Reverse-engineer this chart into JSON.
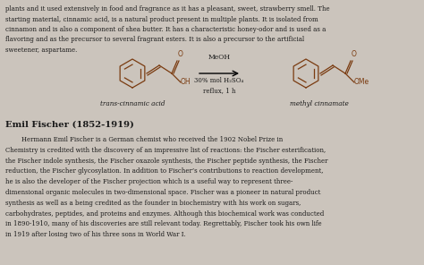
{
  "bg_color": "#cbc4bc",
  "top_text_lines": [
    "plants and it used extensively in food and fragrance as it has a pleasant, sweet, strawberry smell. The",
    "starting material, cinnamic acid, is a natural product present in multiple plants. It is isolated from",
    "cinnamon and is also a component of shea butter. It has a characteristic honey-odor and is used as a",
    "flavoring and as the precursor to several fragrant esters. It is also a precursor to the artificial",
    "sweetener, aspartame."
  ],
  "reaction_label_top": "MeOH",
  "reaction_label_mid": "30% mol H₂SO₄",
  "reaction_label_bot": "reflux, 1 h",
  "left_mol_label": "trans-cinnamic acid",
  "right_mol_label": "methyl cinnamate",
  "section_title": "Emil Fischer (1852-1919)",
  "body_text_lines": [
    "        Hermann Emil Fischer is a German chemist who received the 1902 Nobel Prize in",
    "Chemistry is credited with the discovery of an impressive list of reactions: the Fischer esterification,",
    "the Fischer indole synthesis, the Fischer oxazole synthesis, the Fischer peptide synthesis, the Fischer",
    "reduction, the Fischer glycosylation. In addition to Fischer’s contributions to reaction development,",
    "he is also the developer of the Fischer projection which is a useful way to represent three-",
    "dimensional organic molecules in two-dimensional space. Fischer was a pioneer in natural product",
    "synthesis as well as a being credited as the founder in biochemistry with his work on sugars,",
    "carbohydrates, peptides, and proteins and enzymes. Although this biochemical work was conducted",
    "in 1890-1910, many of his discoveries are still relevant today. Regrettably, Fischer took his own life",
    "in 1919 after losing two of his three sons in World War I."
  ],
  "mol_color": "#7a3b10",
  "text_color": "#1a1a1a",
  "title_color": "#1a1a1a"
}
